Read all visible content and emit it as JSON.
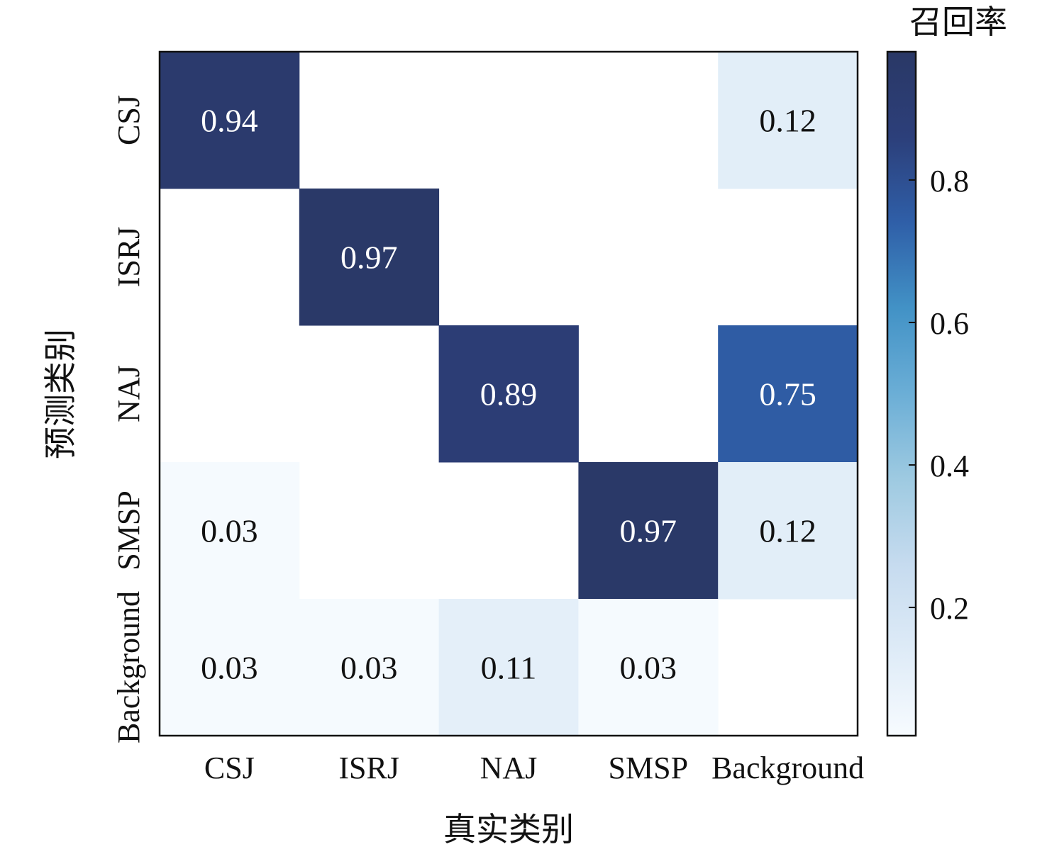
{
  "chart_data": {
    "type": "heatmap",
    "title": "",
    "xlabel": "真实类别",
    "ylabel": "预测类别",
    "x_categories": [
      "CSJ",
      "ISRJ",
      "NAJ",
      "SMSP",
      "Background"
    ],
    "y_categories": [
      "CSJ",
      "ISRJ",
      "NAJ",
      "SMSP",
      "Background"
    ],
    "values": [
      [
        0.94,
        null,
        null,
        null,
        0.12
      ],
      [
        null,
        0.97,
        null,
        null,
        null
      ],
      [
        null,
        null,
        0.89,
        null,
        0.75
      ],
      [
        0.03,
        null,
        null,
        0.97,
        0.12
      ],
      [
        0.03,
        0.03,
        0.11,
        0.03,
        null
      ]
    ],
    "colorbar": {
      "title": "召回率",
      "range": [
        0.02,
        0.98
      ],
      "ticks": [
        0.2,
        0.4,
        0.6,
        0.8
      ],
      "tick_labels": [
        "0.2",
        "0.4",
        "0.6",
        "0.8"
      ],
      "colormap": "Blues",
      "cmap_stops": [
        "#f7fbff",
        "#deebf7",
        "#c6dbef",
        "#9ecae1",
        "#6baed6",
        "#4292c6",
        "#2f5fa8",
        "#2c3f7a",
        "#2a3866"
      ]
    },
    "text_colors": {
      "dark_cell": "#ffffff",
      "light_cell": "#111111"
    }
  }
}
